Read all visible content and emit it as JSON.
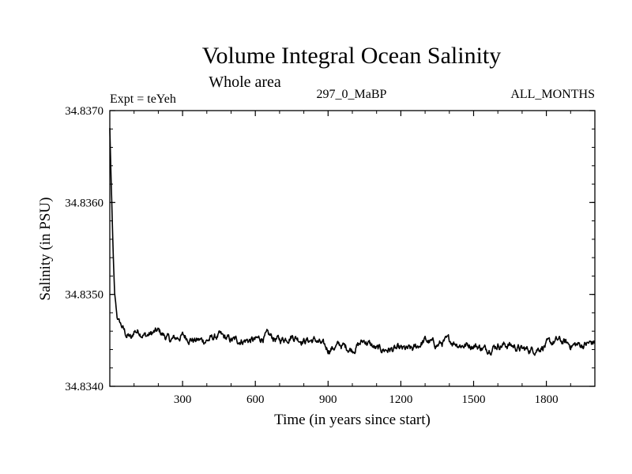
{
  "chart_data": {
    "type": "line",
    "title": "Volume Integral Ocean Salinity",
    "subtitle": "Whole area",
    "annotations": {
      "experiment": "Expt = teYeh",
      "run": "297_0_MaBP",
      "months": "ALL_MONTHS"
    },
    "xlabel": "Time (in years since start)",
    "ylabel": "Salinity (in PSU)",
    "xlim": [
      0,
      2000
    ],
    "ylim": [
      34.834,
      34.837
    ],
    "xticks": [
      300,
      600,
      900,
      1200,
      1500,
      1800
    ],
    "yticks": [
      34.834,
      34.835,
      34.836,
      34.837
    ],
    "ytick_labels": [
      "34.8340",
      "34.8350",
      "34.8360",
      "34.8370"
    ],
    "grid": false,
    "series": [
      {
        "name": "Salinity",
        "x": [
          0,
          5,
          10,
          15,
          20,
          30,
          40,
          50,
          60,
          70,
          80,
          90,
          100,
          120,
          150,
          200,
          250,
          300,
          350,
          400,
          450,
          500,
          550,
          600,
          650,
          700,
          750,
          800,
          850,
          900,
          950,
          1000,
          1050,
          1100,
          1150,
          1200,
          1250,
          1300,
          1350,
          1400,
          1450,
          1500,
          1550,
          1600,
          1650,
          1700,
          1750,
          1800,
          1850,
          1900,
          1950,
          2000
        ],
        "values": [
          34.83681,
          34.8363,
          34.8358,
          34.83535,
          34.835,
          34.83475,
          34.8347,
          34.83465,
          34.8346,
          34.83455,
          34.83455,
          34.8345,
          34.8346,
          34.8346,
          34.83455,
          34.8346,
          34.8345,
          34.83455,
          34.8345,
          34.8345,
          34.83455,
          34.8345,
          34.8345,
          34.8345,
          34.83455,
          34.8345,
          34.83455,
          34.8345,
          34.8345,
          34.8344,
          34.83445,
          34.8344,
          34.8345,
          34.8344,
          34.8344,
          34.8344,
          34.8344,
          34.8345,
          34.83445,
          34.8345,
          34.83445,
          34.83445,
          34.8344,
          34.83445,
          34.83445,
          34.8344,
          34.8344,
          34.83445,
          34.8345,
          34.83445,
          34.83445,
          34.83448
        ]
      }
    ]
  }
}
